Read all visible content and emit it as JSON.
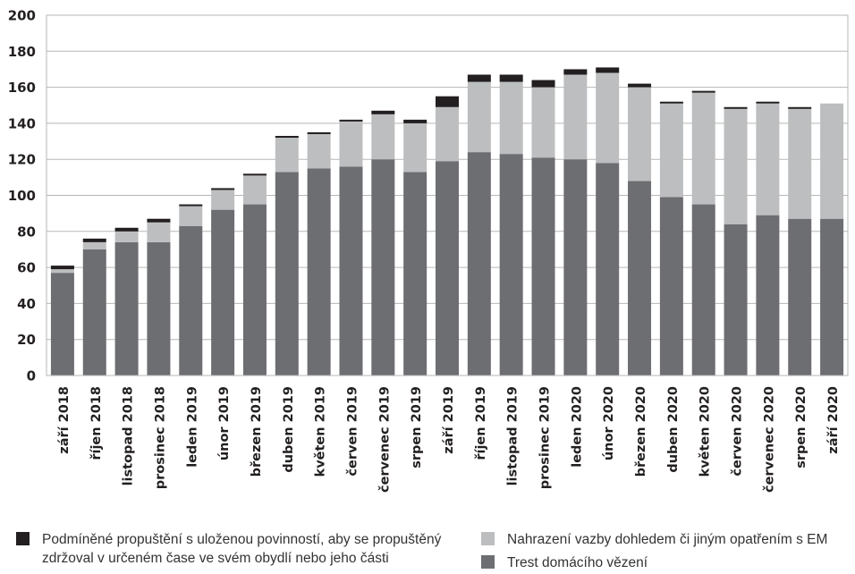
{
  "chart_data": {
    "type": "bar",
    "stacked": true,
    "categories": [
      "září 2018",
      "říjen 2018",
      "listopad 2018",
      "prosinec 2018",
      "leden 2019",
      "únor 2019",
      "březen 2019",
      "duben 2019",
      "květen 2019",
      "červen 2019",
      "červenec 2019",
      "srpen 2019",
      "září 2019",
      "říjen 2019",
      "listopad 2019",
      "prosinec 2019",
      "leden 2020",
      "únor 2020",
      "březen 2020",
      "duben 2020",
      "květen 2020",
      "červen 2020",
      "červenec 2020",
      "srpen 2020",
      "září 2020"
    ],
    "series": [
      {
        "name": "Trest domácího vězení",
        "color": "#6d6e71",
        "values": [
          57,
          70,
          74,
          74,
          83,
          92,
          95,
          113,
          115,
          116,
          120,
          113,
          119,
          124,
          123,
          121,
          120,
          118,
          108,
          99,
          95,
          84,
          89,
          87,
          87
        ]
      },
      {
        "name": "Nahrazení vazby dohledem či jiným opatřením s EM",
        "color": "#bcbec0",
        "values": [
          2,
          4,
          6,
          11,
          11,
          11,
          16,
          19,
          19,
          25,
          25,
          27,
          30,
          39,
          40,
          39,
          47,
          50,
          52,
          52,
          62,
          64,
          62,
          61,
          64
        ]
      },
      {
        "name": "Podmíněné propuštění s uloženou povinností, aby se propuštěný zdržoval v určeném čase ve svém obydlí nebo jeho části",
        "color": "#231f20",
        "values": [
          2,
          2,
          2,
          2,
          1,
          1,
          1,
          1,
          1,
          1,
          2,
          2,
          6,
          4,
          4,
          4,
          3,
          3,
          2,
          1,
          1,
          1,
          1,
          1,
          0
        ]
      }
    ],
    "yticks": [
      0,
      20,
      40,
      60,
      80,
      100,
      120,
      140,
      160,
      180,
      200
    ],
    "ylim": [
      0,
      200
    ],
    "grid": true,
    "legend_position": "bottom"
  }
}
